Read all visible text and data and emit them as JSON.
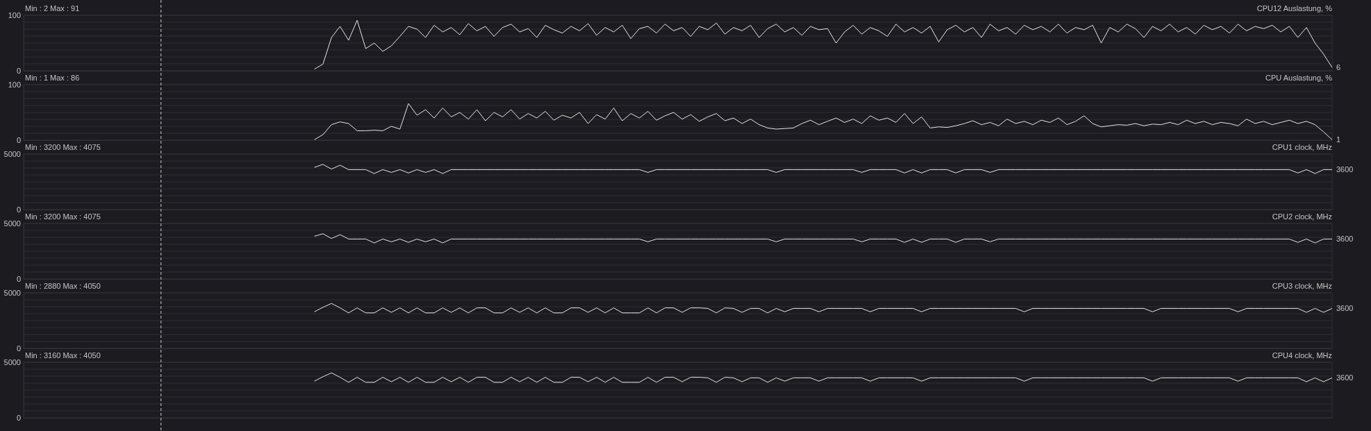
{
  "chart_data": [
    {
      "type": "line",
      "title": "CPU12 Auslastung, %",
      "subtitle": "Min : 2   Max : 91",
      "ylim": [
        0,
        100
      ],
      "yticks": [
        0,
        {
          "value": 12.5,
          "label": null
        },
        {
          "value": 25,
          "label": null
        },
        {
          "value": 37.5,
          "label": null
        },
        {
          "value": 50,
          "label": null
        },
        {
          "value": 62.5,
          "label": null
        },
        {
          "value": 75,
          "label": null
        },
        {
          "value": 87.5,
          "label": null
        },
        100
      ],
      "grid": "y",
      "tick_labels": "y",
      "categories": [
        null,
        null,
        null,
        null,
        null,
        null,
        null,
        null,
        null,
        null,
        null,
        null,
        null,
        null,
        null,
        null,
        null,
        null,
        null,
        null,
        null,
        null,
        null,
        null,
        null,
        null,
        null,
        null,
        null,
        null,
        null,
        null,
        null,
        null,
        null,
        null,
        null,
        null,
        null,
        null,
        null,
        null,
        null,
        null,
        null,
        null,
        null,
        null,
        null,
        null,
        null,
        null,
        null,
        null,
        null,
        null,
        null,
        null,
        null,
        null,
        null,
        null,
        null,
        null,
        null,
        null,
        null,
        null,
        null,
        null,
        null,
        null,
        null,
        null,
        null,
        null,
        null,
        null,
        null,
        null,
        null,
        null,
        null,
        null,
        null,
        null,
        null,
        null,
        null,
        null,
        null,
        null,
        null,
        null,
        null,
        null,
        null,
        null,
        null,
        null,
        null,
        null,
        null,
        null,
        null,
        null,
        null,
        null,
        null,
        null,
        null,
        null,
        null,
        null,
        null,
        null,
        null,
        null,
        null,
        null,
        null,
        null,
        null,
        null,
        null,
        null,
        null,
        null,
        null,
        null,
        null,
        null,
        null,
        null,
        null,
        null,
        null,
        null,
        null,
        null,
        null,
        null,
        null,
        null,
        null,
        null,
        null,
        null,
        null,
        null,
        null,
        null,
        null,
        null
      ],
      "series": [
        {
          "color": "#e8e8e8",
          "values": [
            null,
            null,
            null,
            null,
            null,
            null,
            null,
            null,
            null,
            null,
            null,
            null,
            null,
            null,
            null,
            null,
            null,
            null,
            null,
            null,
            null,
            null,
            null,
            null,
            null,
            null,
            null,
            null,
            null,
            null,
            null,
            null,
            null,
            null,
            3,
            12,
            60,
            80,
            55,
            91,
            40,
            50,
            35,
            45,
            62,
            80,
            75,
            60,
            82,
            70,
            78,
            65,
            85,
            72,
            80,
            62,
            78,
            84,
            70,
            76,
            60,
            82,
            74,
            68,
            80,
            72,
            85,
            64,
            78,
            70,
            82,
            58,
            76,
            80,
            68,
            84,
            72,
            78,
            62,
            80,
            74,
            86,
            66,
            78,
            72,
            82,
            60,
            76,
            84,
            70,
            78,
            64,
            80,
            74,
            76,
            50,
            70,
            82,
            66,
            78,
            72,
            62,
            84,
            70,
            78,
            68,
            80,
            52,
            74,
            82,
            70,
            78,
            60,
            84,
            72,
            78,
            66,
            82,
            74,
            80,
            70,
            84,
            68,
            78,
            74,
            82,
            50,
            78,
            70,
            84,
            76,
            60,
            80,
            72,
            84,
            70,
            78,
            66,
            82,
            74,
            80,
            68,
            84,
            72,
            80,
            76,
            82,
            70,
            80,
            60,
            78,
            50,
            30,
            6
          ]
        }
      ],
      "annotations": [
        "6"
      ]
    },
    {
      "type": "line",
      "title": "CPU Auslastung, %",
      "subtitle": "Min : 1   Max : 86",
      "ylim": [
        0,
        100
      ],
      "yticks": [
        0,
        {
          "value": 12.5,
          "label": null
        },
        {
          "value": 25,
          "label": null
        },
        {
          "value": 37.5,
          "label": null
        },
        {
          "value": 50,
          "label": null
        },
        {
          "value": 62.5,
          "label": null
        },
        {
          "value": 75,
          "label": null
        },
        {
          "value": 87.5,
          "label": null
        },
        100
      ],
      "grid": "y",
      "tick_labels": "y",
      "categories": [
        null,
        null,
        null,
        null,
        null,
        null,
        null,
        null,
        null,
        null,
        null,
        null,
        null,
        null,
        null,
        null,
        null,
        null,
        null,
        null,
        null,
        null,
        null,
        null,
        null,
        null,
        null,
        null,
        null,
        null,
        null,
        null,
        null,
        null,
        null,
        null,
        null,
        null,
        null,
        null,
        null,
        null,
        null,
        null,
        null,
        null,
        null,
        null,
        null,
        null,
        null,
        null,
        null,
        null,
        null,
        null,
        null,
        null,
        null,
        null,
        null,
        null,
        null,
        null,
        null,
        null,
        null,
        null,
        null,
        null,
        null,
        null,
        null,
        null,
        null,
        null,
        null,
        null,
        null,
        null,
        null,
        null,
        null,
        null,
        null,
        null,
        null,
        null,
        null,
        null,
        null,
        null,
        null,
        null,
        null,
        null,
        null,
        null,
        null,
        null,
        null,
        null,
        null,
        null,
        null,
        null,
        null,
        null,
        null,
        null,
        null,
        null,
        null,
        null,
        null,
        null,
        null,
        null,
        null,
        null,
        null,
        null,
        null,
        null,
        null,
        null,
        null,
        null,
        null,
        null,
        null,
        null,
        null,
        null,
        null,
        null,
        null,
        null,
        null,
        null,
        null,
        null,
        null,
        null,
        null,
        null,
        null,
        null,
        null,
        null,
        null,
        null,
        null,
        null
      ],
      "series": [
        {
          "color": "#e8e8e8",
          "values": [
            null,
            null,
            null,
            null,
            null,
            null,
            null,
            null,
            null,
            null,
            null,
            null,
            null,
            null,
            null,
            null,
            null,
            null,
            null,
            null,
            null,
            null,
            null,
            null,
            null,
            null,
            null,
            null,
            null,
            null,
            null,
            null,
            null,
            null,
            1,
            10,
            28,
            33,
            30,
            17,
            17,
            18,
            17,
            25,
            20,
            66,
            45,
            55,
            40,
            58,
            42,
            50,
            38,
            55,
            35,
            50,
            42,
            55,
            38,
            48,
            40,
            52,
            36,
            45,
            40,
            50,
            30,
            46,
            38,
            58,
            35,
            48,
            40,
            52,
            36,
            44,
            50,
            38,
            46,
            34,
            42,
            48,
            35,
            40,
            30,
            38,
            28,
            22,
            20,
            21,
            22,
            30,
            36,
            28,
            34,
            40,
            32,
            38,
            30,
            44,
            36,
            40,
            32,
            48,
            30,
            42,
            22,
            24,
            23,
            26,
            30,
            35,
            28,
            32,
            26,
            38,
            30,
            34,
            28,
            36,
            32,
            40,
            28,
            34,
            44,
            30,
            24,
            26,
            28,
            27,
            30,
            26,
            29,
            28,
            32,
            28,
            36,
            30,
            34,
            28,
            32,
            30,
            26,
            38,
            30,
            34,
            28,
            32,
            36,
            30,
            34,
            28,
            15,
            1
          ]
        }
      ],
      "annotations": [
        "1"
      ]
    },
    {
      "type": "line",
      "title": "CPU1 clock, MHz",
      "subtitle": "Min : 3200   Max : 4075",
      "ylim": [
        0,
        5000
      ],
      "yticks": [
        0,
        {
          "value": 625,
          "label": null
        },
        {
          "value": 1250,
          "label": null
        },
        {
          "value": 1875,
          "label": null
        },
        {
          "value": 2500,
          "label": null
        },
        {
          "value": 3125,
          "label": null
        },
        {
          "value": 3750,
          "label": null
        },
        {
          "value": 4375,
          "label": null
        },
        5000
      ],
      "grid": "y",
      "tick_labels": "y",
      "categories": [
        null,
        null,
        null,
        null,
        null,
        null,
        null,
        null,
        null,
        null,
        null,
        null,
        null,
        null,
        null,
        null,
        null,
        null,
        null,
        null,
        null,
        null,
        null,
        null,
        null,
        null,
        null,
        null,
        null,
        null,
        null,
        null,
        null,
        null,
        null,
        null,
        null,
        null,
        null,
        null,
        null,
        null,
        null,
        null,
        null,
        null,
        null,
        null,
        null,
        null,
        null,
        null,
        null,
        null,
        null,
        null,
        null,
        null,
        null,
        null,
        null,
        null,
        null,
        null,
        null,
        null,
        null,
        null,
        null,
        null,
        null,
        null,
        null,
        null,
        null,
        null,
        null,
        null,
        null,
        null,
        null,
        null,
        null,
        null,
        null,
        null,
        null,
        null,
        null,
        null,
        null,
        null,
        null,
        null,
        null,
        null,
        null,
        null,
        null,
        null,
        null,
        null,
        null,
        null,
        null,
        null,
        null,
        null,
        null,
        null,
        null,
        null,
        null,
        null,
        null,
        null,
        null,
        null,
        null,
        null,
        null,
        null,
        null,
        null,
        null,
        null,
        null,
        null,
        null,
        null,
        null,
        null,
        null,
        null,
        null,
        null,
        null,
        null,
        null,
        null,
        null,
        null,
        null,
        null,
        null,
        null,
        null,
        null,
        null,
        null,
        null,
        null,
        null,
        null
      ],
      "series": [
        {
          "color": "#e8e8e8",
          "values": [
            null,
            null,
            null,
            null,
            null,
            null,
            null,
            null,
            null,
            null,
            null,
            null,
            null,
            null,
            null,
            null,
            null,
            null,
            null,
            null,
            null,
            null,
            null,
            null,
            null,
            null,
            null,
            null,
            null,
            null,
            null,
            null,
            null,
            null,
            3800,
            4075,
            3650,
            4000,
            3600,
            3600,
            3600,
            3250,
            3600,
            3350,
            3600,
            3300,
            3600,
            3350,
            3600,
            3250,
            3600,
            3600,
            3600,
            3600,
            3600,
            3600,
            3600,
            3600,
            3600,
            3600,
            3600,
            3600,
            3600,
            3600,
            3600,
            3600,
            3600,
            3600,
            3600,
            3600,
            3600,
            3600,
            3600,
            3350,
            3600,
            3600,
            3600,
            3600,
            3600,
            3600,
            3600,
            3600,
            3600,
            3600,
            3600,
            3600,
            3600,
            3600,
            3350,
            3600,
            3600,
            3600,
            3600,
            3600,
            3600,
            3600,
            3600,
            3600,
            3350,
            3600,
            3600,
            3600,
            3600,
            3300,
            3600,
            3300,
            3600,
            3600,
            3600,
            3300,
            3600,
            3600,
            3600,
            3350,
            3600,
            3600,
            3600,
            3600,
            3600,
            3600,
            3600,
            3600,
            3600,
            3600,
            3600,
            3600,
            3600,
            3600,
            3600,
            3600,
            3600,
            3600,
            3600,
            3600,
            3600,
            3600,
            3600,
            3600,
            3600,
            3600,
            3600,
            3600,
            3600,
            3600,
            3600,
            3600,
            3600,
            3600,
            3600,
            3300,
            3600,
            3250,
            3600,
            3600
          ]
        }
      ],
      "annotations": [
        "3600"
      ]
    },
    {
      "type": "line",
      "title": "CPU2 clock, MHz",
      "subtitle": "Min : 3200   Max : 4075",
      "ylim": [
        0,
        5000
      ],
      "yticks": [
        0,
        {
          "value": 625,
          "label": null
        },
        {
          "value": 1250,
          "label": null
        },
        {
          "value": 1875,
          "label": null
        },
        {
          "value": 2500,
          "label": null
        },
        {
          "value": 3125,
          "label": null
        },
        {
          "value": 3750,
          "label": null
        },
        {
          "value": 4375,
          "label": null
        },
        5000
      ],
      "grid": "y",
      "tick_labels": "y",
      "categories": [
        null,
        null,
        null,
        null,
        null,
        null,
        null,
        null,
        null,
        null,
        null,
        null,
        null,
        null,
        null,
        null,
        null,
        null,
        null,
        null,
        null,
        null,
        null,
        null,
        null,
        null,
        null,
        null,
        null,
        null,
        null,
        null,
        null,
        null,
        null,
        null,
        null,
        null,
        null,
        null,
        null,
        null,
        null,
        null,
        null,
        null,
        null,
        null,
        null,
        null,
        null,
        null,
        null,
        null,
        null,
        null,
        null,
        null,
        null,
        null,
        null,
        null,
        null,
        null,
        null,
        null,
        null,
        null,
        null,
        null,
        null,
        null,
        null,
        null,
        null,
        null,
        null,
        null,
        null,
        null,
        null,
        null,
        null,
        null,
        null,
        null,
        null,
        null,
        null,
        null,
        null,
        null,
        null,
        null,
        null,
        null,
        null,
        null,
        null,
        null,
        null,
        null,
        null,
        null,
        null,
        null,
        null,
        null,
        null,
        null,
        null,
        null,
        null,
        null,
        null,
        null,
        null,
        null,
        null,
        null,
        null,
        null,
        null,
        null,
        null,
        null,
        null,
        null,
        null,
        null,
        null,
        null,
        null,
        null,
        null,
        null,
        null,
        null,
        null,
        null,
        null,
        null,
        null,
        null,
        null,
        null,
        null,
        null,
        null,
        null,
        null,
        null,
        null,
        null
      ],
      "series": [
        {
          "color": "#e8e8e8",
          "values": [
            null,
            null,
            null,
            null,
            null,
            null,
            null,
            null,
            null,
            null,
            null,
            null,
            null,
            null,
            null,
            null,
            null,
            null,
            null,
            null,
            null,
            null,
            null,
            null,
            null,
            null,
            null,
            null,
            null,
            null,
            null,
            null,
            null,
            null,
            3850,
            4075,
            3650,
            4000,
            3600,
            3600,
            3600,
            3250,
            3600,
            3350,
            3600,
            3300,
            3600,
            3350,
            3600,
            3250,
            3600,
            3600,
            3600,
            3600,
            3600,
            3600,
            3600,
            3600,
            3600,
            3600,
            3600,
            3600,
            3600,
            3600,
            3600,
            3600,
            3600,
            3600,
            3600,
            3600,
            3600,
            3600,
            3600,
            3350,
            3600,
            3600,
            3600,
            3600,
            3600,
            3600,
            3600,
            3600,
            3600,
            3600,
            3600,
            3600,
            3600,
            3600,
            3350,
            3600,
            3600,
            3600,
            3600,
            3600,
            3600,
            3600,
            3600,
            3600,
            3350,
            3600,
            3600,
            3600,
            3600,
            3300,
            3600,
            3300,
            3600,
            3600,
            3600,
            3300,
            3600,
            3600,
            3600,
            3350,
            3600,
            3600,
            3600,
            3600,
            3600,
            3600,
            3600,
            3600,
            3600,
            3600,
            3600,
            3600,
            3600,
            3600,
            3600,
            3600,
            3600,
            3600,
            3600,
            3600,
            3600,
            3600,
            3600,
            3600,
            3600,
            3600,
            3600,
            3600,
            3600,
            3600,
            3600,
            3600,
            3600,
            3600,
            3600,
            3300,
            3600,
            3250,
            3600,
            3600
          ]
        }
      ],
      "annotations": [
        "3600"
      ]
    },
    {
      "type": "line",
      "title": "CPU3 clock, MHz",
      "subtitle": "Min : 2880   Max : 4050",
      "ylim": [
        0,
        5000
      ],
      "yticks": [
        0,
        {
          "value": 625,
          "label": null
        },
        {
          "value": 1250,
          "label": null
        },
        {
          "value": 1875,
          "label": null
        },
        {
          "value": 2500,
          "label": null
        },
        {
          "value": 3125,
          "label": null
        },
        {
          "value": 3750,
          "label": null
        },
        {
          "value": 4375,
          "label": null
        },
        5000
      ],
      "grid": "y",
      "tick_labels": "y",
      "categories": [
        null,
        null,
        null,
        null,
        null,
        null,
        null,
        null,
        null,
        null,
        null,
        null,
        null,
        null,
        null,
        null,
        null,
        null,
        null,
        null,
        null,
        null,
        null,
        null,
        null,
        null,
        null,
        null,
        null,
        null,
        null,
        null,
        null,
        null,
        null,
        null,
        null,
        null,
        null,
        null,
        null,
        null,
        null,
        null,
        null,
        null,
        null,
        null,
        null,
        null,
        null,
        null,
        null,
        null,
        null,
        null,
        null,
        null,
        null,
        null,
        null,
        null,
        null,
        null,
        null,
        null,
        null,
        null,
        null,
        null,
        null,
        null,
        null,
        null,
        null,
        null,
        null,
        null,
        null,
        null,
        null,
        null,
        null,
        null,
        null,
        null,
        null,
        null,
        null,
        null,
        null,
        null,
        null,
        null,
        null,
        null,
        null,
        null,
        null,
        null,
        null,
        null,
        null,
        null,
        null,
        null,
        null,
        null,
        null,
        null,
        null,
        null,
        null,
        null,
        null,
        null,
        null,
        null,
        null,
        null,
        null,
        null,
        null,
        null,
        null,
        null,
        null,
        null,
        null,
        null,
        null,
        null,
        null,
        null,
        null,
        null,
        null,
        null,
        null,
        null,
        null,
        null,
        null,
        null,
        null,
        null,
        null,
        null,
        null,
        null,
        null,
        null,
        null,
        null
      ],
      "series": [
        {
          "color": "#e8e8e8",
          "values": [
            null,
            null,
            null,
            null,
            null,
            null,
            null,
            null,
            null,
            null,
            null,
            null,
            null,
            null,
            null,
            null,
            null,
            null,
            null,
            null,
            null,
            null,
            null,
            null,
            null,
            null,
            null,
            null,
            null,
            null,
            null,
            null,
            null,
            null,
            3300,
            3700,
            4050,
            3650,
            3200,
            3650,
            3200,
            3200,
            3650,
            3250,
            3650,
            3200,
            3650,
            3200,
            3200,
            3650,
            3250,
            3650,
            3200,
            3650,
            3650,
            3200,
            3200,
            3650,
            3250,
            3650,
            3200,
            3650,
            3200,
            3200,
            3650,
            3650,
            3250,
            3650,
            3200,
            3650,
            3200,
            3200,
            3200,
            3650,
            3200,
            3650,
            3650,
            3250,
            3650,
            3650,
            3600,
            3200,
            3650,
            3600,
            3250,
            3600,
            3600,
            3200,
            3600,
            3300,
            3600,
            3600,
            3600,
            3300,
            3600,
            3600,
            3600,
            3600,
            3600,
            3300,
            3600,
            3600,
            3600,
            3600,
            3600,
            3300,
            3600,
            3600,
            3600,
            3600,
            3600,
            3600,
            3600,
            3600,
            3600,
            3600,
            3600,
            3300,
            3600,
            3600,
            3600,
            3600,
            3600,
            3600,
            3600,
            3600,
            3600,
            3600,
            3600,
            3600,
            3600,
            3600,
            3300,
            3600,
            3600,
            3600,
            3600,
            3600,
            3600,
            3600,
            3600,
            3600,
            3300,
            3600,
            3600,
            3600,
            3600,
            3600,
            3600,
            3600,
            3250,
            3600,
            3250,
            3600
          ]
        }
      ],
      "annotations": [
        "3600"
      ]
    },
    {
      "type": "line",
      "title": "CPU4 clock, MHz",
      "subtitle": "Min : 3160   Max : 4050",
      "ylim": [
        0,
        5000
      ],
      "yticks": [
        0,
        {
          "value": 625,
          "label": null
        },
        {
          "value": 1250,
          "label": null
        },
        {
          "value": 1875,
          "label": null
        },
        {
          "value": 2500,
          "label": null
        },
        {
          "value": 3125,
          "label": null
        },
        {
          "value": 3750,
          "label": null
        },
        {
          "value": 4375,
          "label": null
        },
        5000
      ],
      "grid": "y",
      "tick_labels": "y",
      "categories": [
        null,
        null,
        null,
        null,
        null,
        null,
        null,
        null,
        null,
        null,
        null,
        null,
        null,
        null,
        null,
        null,
        null,
        null,
        null,
        null,
        null,
        null,
        null,
        null,
        null,
        null,
        null,
        null,
        null,
        null,
        null,
        null,
        null,
        null,
        null,
        null,
        null,
        null,
        null,
        null,
        null,
        null,
        null,
        null,
        null,
        null,
        null,
        null,
        null,
        null,
        null,
        null,
        null,
        null,
        null,
        null,
        null,
        null,
        null,
        null,
        null,
        null,
        null,
        null,
        null,
        null,
        null,
        null,
        null,
        null,
        null,
        null,
        null,
        null,
        null,
        null,
        null,
        null,
        null,
        null,
        null,
        null,
        null,
        null,
        null,
        null,
        null,
        null,
        null,
        null,
        null,
        null,
        null,
        null,
        null,
        null,
        null,
        null,
        null,
        null,
        null,
        null,
        null,
        null,
        null,
        null,
        null,
        null,
        null,
        null,
        null,
        null,
        null,
        null,
        null,
        null,
        null,
        null,
        null,
        null,
        null,
        null,
        null,
        null,
        null,
        null,
        null,
        null,
        null,
        null,
        null,
        null,
        null,
        null,
        null,
        null,
        null,
        null,
        null,
        null,
        null,
        null,
        null,
        null,
        null,
        null,
        null,
        null,
        null,
        null,
        null,
        null,
        null,
        null
      ],
      "series": [
        {
          "color": "#e8e8e8",
          "values": [
            null,
            null,
            null,
            null,
            null,
            null,
            null,
            null,
            null,
            null,
            null,
            null,
            null,
            null,
            null,
            null,
            null,
            null,
            null,
            null,
            null,
            null,
            null,
            null,
            null,
            null,
            null,
            null,
            null,
            null,
            null,
            null,
            null,
            null,
            3300,
            3700,
            4050,
            3650,
            3200,
            3650,
            3200,
            3200,
            3650,
            3250,
            3650,
            3200,
            3650,
            3200,
            3200,
            3650,
            3250,
            3650,
            3200,
            3650,
            3650,
            3200,
            3200,
            3650,
            3250,
            3650,
            3200,
            3650,
            3200,
            3200,
            3650,
            3650,
            3250,
            3650,
            3200,
            3650,
            3200,
            3200,
            3200,
            3650,
            3200,
            3650,
            3650,
            3250,
            3650,
            3650,
            3600,
            3200,
            3650,
            3600,
            3250,
            3600,
            3600,
            3200,
            3600,
            3300,
            3600,
            3600,
            3600,
            3300,
            3600,
            3600,
            3600,
            3600,
            3600,
            3300,
            3600,
            3600,
            3600,
            3600,
            3600,
            3300,
            3600,
            3600,
            3600,
            3600,
            3600,
            3600,
            3600,
            3600,
            3600,
            3600,
            3600,
            3300,
            3600,
            3600,
            3600,
            3600,
            3600,
            3600,
            3600,
            3600,
            3600,
            3600,
            3600,
            3600,
            3600,
            3600,
            3300,
            3600,
            3600,
            3600,
            3600,
            3600,
            3600,
            3600,
            3600,
            3600,
            3300,
            3600,
            3600,
            3600,
            3600,
            3600,
            3600,
            3600,
            3250,
            3600,
            3250,
            3600
          ]
        }
      ],
      "annotations": [
        "3600"
      ]
    }
  ]
}
